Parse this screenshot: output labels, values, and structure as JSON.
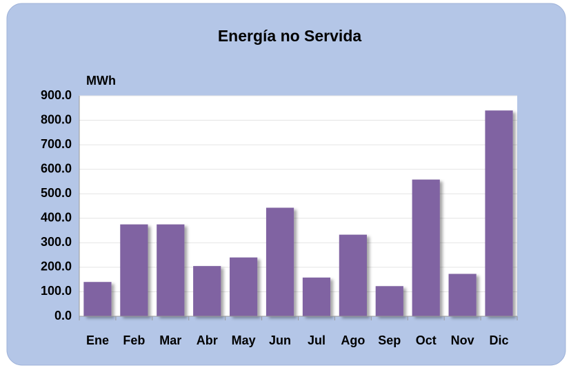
{
  "chart_data": {
    "type": "bar",
    "title": "Energía no Servida",
    "y_label": "MWh",
    "categories": [
      "Ene",
      "Feb",
      "Mar",
      "Abr",
      "May",
      "Jun",
      "Jul",
      "Ago",
      "Sep",
      "Oct",
      "Nov",
      "Dic"
    ],
    "values": [
      140,
      375,
      375,
      205,
      240,
      443,
      158,
      333,
      123,
      558,
      173,
      840
    ],
    "color": "#8064a2",
    "ylim": [
      0,
      900
    ],
    "yticks": [
      {
        "value": 0,
        "label": "0.0"
      },
      {
        "value": 100,
        "label": "100.0"
      },
      {
        "value": 200,
        "label": "200.0"
      },
      {
        "value": 300,
        "label": "300.0"
      },
      {
        "value": 400,
        "label": "400.0"
      },
      {
        "value": 500,
        "label": "500.0"
      },
      {
        "value": 600,
        "label": "600.0"
      },
      {
        "value": 700,
        "label": "700.0"
      },
      {
        "value": 800,
        "label": "800.0"
      },
      {
        "value": 900,
        "label": "900.0"
      }
    ],
    "grid": true
  }
}
